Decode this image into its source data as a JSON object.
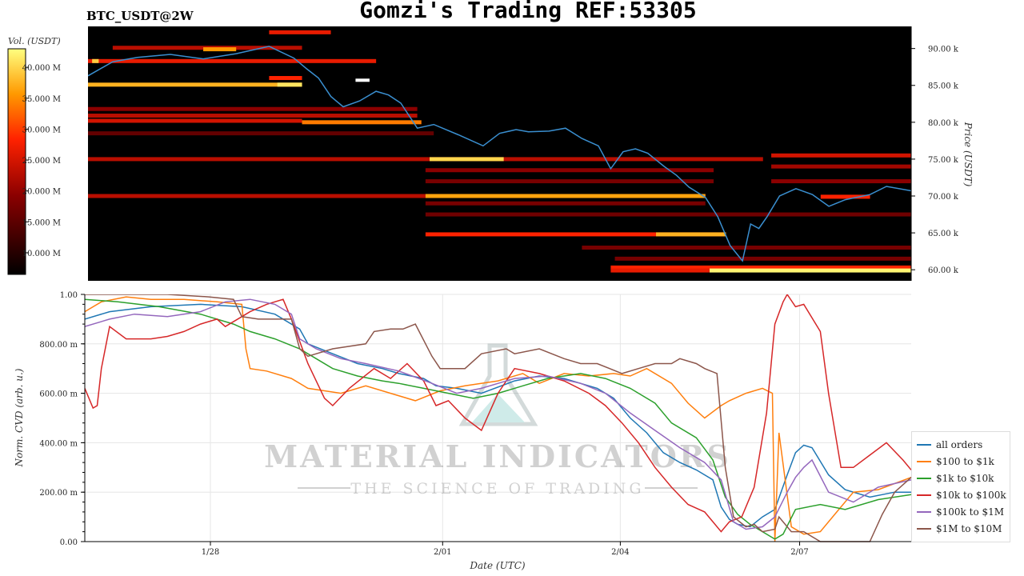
{
  "header": {
    "title": "Gomzi's Trading REF:53305",
    "pair": "BTC_USDT@2W"
  },
  "watermark": {
    "brand": "MATERIAL INDICATORS",
    "tagline": "THE SCIENCE OF TRADING"
  },
  "colorbar": {
    "label": "Vol. (USDT)",
    "ticks": [
      "40.000 M",
      "35.000 M",
      "30.000 M",
      "25.000 M",
      "20.000 M",
      "15.000 M",
      "10.000 M"
    ],
    "tick_values": [
      40,
      35,
      30,
      25,
      20,
      15,
      10
    ],
    "range": [
      6.5,
      43
    ]
  },
  "chart_data": [
    {
      "type": "heatmap",
      "title": "",
      "xlabel": "",
      "ylabel": "Price (USDT)",
      "ylim": [
        58500,
        93000
      ],
      "y_ticks": [
        {
          "value": 90000,
          "label": "90.00 k"
        },
        {
          "value": 85000,
          "label": "85.00 k"
        },
        {
          "value": 80000,
          "label": "80.00 k"
        },
        {
          "value": 75000,
          "label": "75.00 k"
        },
        {
          "value": 70000,
          "label": "70.00 k"
        },
        {
          "value": 65000,
          "label": "65.00 k"
        },
        {
          "value": 60000,
          "label": "60.00 k"
        }
      ],
      "price_line_color": "#3a8fd0",
      "price_series": {
        "x": [
          0,
          3,
          6,
          10,
          14,
          18,
          22,
          25,
          26.5,
          28,
          29.5,
          31,
          33,
          35,
          36.5,
          38,
          40,
          42,
          45,
          48,
          50,
          52,
          53.5,
          56,
          58,
          60,
          62,
          63.5,
          65,
          66.5,
          68,
          70,
          71.5,
          73,
          75,
          76.5,
          78,
          79.5,
          80.5,
          81.5,
          82.5,
          84,
          86,
          88,
          90,
          92,
          95,
          97,
          100
        ],
        "y": [
          86300,
          88200,
          88800,
          89200,
          88600,
          89300,
          90300,
          88700,
          87300,
          86000,
          83500,
          82100,
          82900,
          84200,
          83700,
          82600,
          79200,
          79700,
          78300,
          76800,
          78500,
          79000,
          78700,
          78800,
          79200,
          77800,
          76800,
          73700,
          76000,
          76400,
          75800,
          74000,
          72800,
          71200,
          69800,
          67200,
          63300,
          61200,
          66200,
          65600,
          67200,
          70000,
          71000,
          70200,
          68600,
          69500,
          70200,
          71300,
          70700
        ]
      },
      "price_levels": [
        {
          "price": 85100,
          "intensity": 0.85,
          "from": 0,
          "to": 26
        },
        {
          "price": 85100,
          "intensity": 0.95,
          "from": 23,
          "to": 26
        },
        {
          "price": 88300,
          "intensity": 0.55,
          "from": 0,
          "to": 35
        },
        {
          "price": 88300,
          "intensity": 0.9,
          "from": 0.5,
          "to": 1.3
        },
        {
          "price": 90100,
          "intensity": 0.45,
          "from": 3,
          "to": 26
        },
        {
          "price": 89900,
          "intensity": 0.8,
          "from": 14,
          "to": 18
        },
        {
          "price": 92200,
          "intensity": 0.55,
          "from": 22,
          "to": 29.5
        },
        {
          "price": 86000,
          "intensity": 0.6,
          "from": 22,
          "to": 26
        },
        {
          "price": 81800,
          "intensity": 0.35,
          "from": 0,
          "to": 40
        },
        {
          "price": 80900,
          "intensity": 0.45,
          "from": 0,
          "to": 40
        },
        {
          "price": 80200,
          "intensity": 0.5,
          "from": 0,
          "to": 26
        },
        {
          "price": 80000,
          "intensity": 0.75,
          "from": 26,
          "to": 40.5
        },
        {
          "price": 78500,
          "intensity": 0.25,
          "from": 0,
          "to": 42
        },
        {
          "price": 75000,
          "intensity": 0.45,
          "from": 0,
          "to": 82
        },
        {
          "price": 75000,
          "intensity": 0.92,
          "from": 41.5,
          "to": 50.5
        },
        {
          "price": 73500,
          "intensity": 0.35,
          "from": 41,
          "to": 76
        },
        {
          "price": 72000,
          "intensity": 0.3,
          "from": 41,
          "to": 76
        },
        {
          "price": 70000,
          "intensity": 0.45,
          "from": 0,
          "to": 75
        },
        {
          "price": 70000,
          "intensity": 0.82,
          "from": 41,
          "to": 75
        },
        {
          "price": 69000,
          "intensity": 0.3,
          "from": 41,
          "to": 75
        },
        {
          "price": 67500,
          "intensity": 0.28,
          "from": 41,
          "to": 100
        },
        {
          "price": 64800,
          "intensity": 0.6,
          "from": 41,
          "to": 77.5
        },
        {
          "price": 64800,
          "intensity": 0.85,
          "from": 69,
          "to": 77.5
        },
        {
          "price": 63000,
          "intensity": 0.3,
          "from": 60,
          "to": 100
        },
        {
          "price": 61500,
          "intensity": 0.3,
          "from": 64,
          "to": 100
        },
        {
          "price": 60300,
          "intensity": 0.6,
          "from": 63.5,
          "to": 100
        },
        {
          "price": 59900,
          "intensity": 0.98,
          "from": 75.5,
          "to": 100
        },
        {
          "price": 59900,
          "intensity": 0.55,
          "from": 63.5,
          "to": 75.5
        },
        {
          "price": 75500,
          "intensity": 0.5,
          "from": 83,
          "to": 100
        },
        {
          "price": 74000,
          "intensity": 0.4,
          "from": 83,
          "to": 100
        },
        {
          "price": 72000,
          "intensity": 0.35,
          "from": 83,
          "to": 100
        },
        {
          "price": 69900,
          "intensity": 0.6,
          "from": 89,
          "to": 95
        }
      ],
      "isolated_marks": [
        {
          "price": 85700,
          "from": 32.5,
          "to": 34.2
        }
      ]
    },
    {
      "type": "line",
      "title": "",
      "xlabel": "Date (UTC)",
      "ylabel": "Norm. CVD (arb. u.)",
      "ylim": [
        0,
        1
      ],
      "y_ticks": [
        {
          "value": 1.0,
          "label": "1.00"
        },
        {
          "value": 0.8,
          "label": "800.00 m"
        },
        {
          "value": 0.6,
          "label": "600.00 m"
        },
        {
          "value": 0.4,
          "label": "400.00 m"
        },
        {
          "value": 0.2,
          "label": "200.00 m"
        },
        {
          "value": 0.0,
          "label": "0.00"
        }
      ],
      "x_ticks": [
        {
          "value": 15.2,
          "label": "1/28"
        },
        {
          "value": 43.3,
          "label": "2/01"
        },
        {
          "value": 64.8,
          "label": "2/04"
        },
        {
          "value": 86.5,
          "label": "2/07"
        }
      ],
      "grid": true,
      "legend_position": "right",
      "series": [
        {
          "name": "all orders",
          "color": "#1f77b4",
          "x": [
            0,
            3,
            8,
            14,
            19,
            23,
            26,
            27,
            30,
            33,
            36,
            38,
            41,
            42.5,
            45,
            48,
            52,
            55,
            58,
            62,
            64,
            66,
            68,
            70,
            72,
            74,
            76,
            77,
            78,
            79,
            80.5,
            82,
            83.5,
            85,
            86,
            87,
            88,
            90,
            92,
            95,
            98,
            100
          ],
          "y": [
            0.9,
            0.93,
            0.95,
            0.96,
            0.95,
            0.92,
            0.86,
            0.8,
            0.76,
            0.72,
            0.7,
            0.68,
            0.66,
            0.63,
            0.62,
            0.6,
            0.65,
            0.67,
            0.66,
            0.62,
            0.58,
            0.5,
            0.44,
            0.36,
            0.32,
            0.29,
            0.25,
            0.14,
            0.09,
            0.07,
            0.06,
            0.1,
            0.13,
            0.27,
            0.36,
            0.39,
            0.38,
            0.27,
            0.21,
            0.18,
            0.2,
            0.2
          ]
        },
        {
          "name": "$100 to $1k",
          "color": "#ff7f0e",
          "x": [
            0,
            2,
            5,
            8,
            12,
            16,
            19,
            19.5,
            20,
            22,
            25,
            27,
            29,
            31,
            34,
            37,
            40,
            43,
            46,
            50,
            53,
            55,
            58,
            61,
            64,
            66,
            68,
            71,
            73,
            75,
            77,
            78,
            80,
            82,
            83.2,
            83.5,
            84,
            85.5,
            87,
            89,
            91,
            93,
            96,
            100
          ],
          "y": [
            0.93,
            0.97,
            0.99,
            0.98,
            0.98,
            0.97,
            0.96,
            0.78,
            0.7,
            0.69,
            0.66,
            0.62,
            0.61,
            0.6,
            0.63,
            0.6,
            0.57,
            0.61,
            0.63,
            0.65,
            0.68,
            0.64,
            0.68,
            0.67,
            0.68,
            0.67,
            0.7,
            0.64,
            0.56,
            0.5,
            0.55,
            0.57,
            0.6,
            0.62,
            0.6,
            0.0,
            0.44,
            0.06,
            0.03,
            0.04,
            0.12,
            0.2,
            0.21,
            0.26
          ]
        },
        {
          "name": "$1k to $10k",
          "color": "#2ca02c",
          "x": [
            0,
            4,
            9,
            14,
            18,
            20,
            23,
            26,
            28,
            30,
            33,
            36,
            38,
            41,
            44,
            47,
            50,
            53,
            56,
            60,
            63,
            66,
            69,
            71,
            74,
            76,
            77.5,
            79,
            80.5,
            82,
            83.5,
            84.5,
            86,
            89,
            92,
            96,
            100
          ],
          "y": [
            0.98,
            0.97,
            0.95,
            0.92,
            0.88,
            0.85,
            0.82,
            0.78,
            0.74,
            0.7,
            0.67,
            0.65,
            0.64,
            0.62,
            0.6,
            0.58,
            0.6,
            0.63,
            0.66,
            0.68,
            0.66,
            0.62,
            0.56,
            0.48,
            0.42,
            0.33,
            0.18,
            0.11,
            0.07,
            0.04,
            0.01,
            0.03,
            0.13,
            0.15,
            0.13,
            0.17,
            0.19
          ]
        },
        {
          "name": "$10k to $100k",
          "color": "#d62728",
          "x": [
            0,
            1,
            1.5,
            2,
            3,
            5,
            8,
            10,
            12,
            14,
            16,
            17,
            19,
            20,
            22,
            24,
            25,
            27,
            29,
            30,
            32,
            35,
            37,
            39,
            41,
            42.5,
            44,
            46,
            48,
            50,
            52,
            55,
            58,
            61,
            63,
            65,
            67,
            69,
            71,
            73,
            75,
            77,
            78,
            79.5,
            81,
            82.5,
            83.5,
            84.5,
            85,
            86,
            87,
            89,
            90,
            91.5,
            93,
            95,
            97,
            99,
            100
          ],
          "y": [
            0.62,
            0.54,
            0.55,
            0.7,
            0.87,
            0.82,
            0.82,
            0.83,
            0.85,
            0.88,
            0.9,
            0.87,
            0.91,
            0.93,
            0.96,
            0.98,
            0.9,
            0.72,
            0.58,
            0.55,
            0.62,
            0.7,
            0.66,
            0.72,
            0.65,
            0.55,
            0.57,
            0.5,
            0.45,
            0.6,
            0.7,
            0.68,
            0.65,
            0.6,
            0.55,
            0.48,
            0.4,
            0.3,
            0.22,
            0.15,
            0.12,
            0.04,
            0.08,
            0.1,
            0.22,
            0.52,
            0.88,
            0.97,
            1.0,
            0.95,
            0.96,
            0.85,
            0.6,
            0.3,
            0.3,
            0.35,
            0.4,
            0.33,
            0.29
          ]
        },
        {
          "name": "$100k to $1M",
          "color": "#9467bd",
          "x": [
            0,
            3,
            6,
            10,
            14,
            17,
            20,
            23,
            25,
            26,
            28,
            31,
            34,
            38,
            42,
            45,
            48,
            52,
            56,
            60,
            63,
            66,
            69,
            72,
            75,
            77,
            78.5,
            80,
            82,
            83.5,
            85,
            86,
            87,
            88,
            90,
            93,
            96,
            100
          ],
          "y": [
            0.87,
            0.9,
            0.92,
            0.91,
            0.93,
            0.97,
            0.98,
            0.96,
            0.92,
            0.82,
            0.78,
            0.74,
            0.72,
            0.69,
            0.64,
            0.6,
            0.62,
            0.66,
            0.67,
            0.64,
            0.6,
            0.52,
            0.45,
            0.38,
            0.32,
            0.25,
            0.08,
            0.05,
            0.06,
            0.1,
            0.2,
            0.26,
            0.3,
            0.33,
            0.2,
            0.16,
            0.22,
            0.25
          ]
        },
        {
          "name": "$1M to $10M",
          "color": "#8c564b",
          "x": [
            0,
            5,
            10,
            15,
            18,
            19,
            21,
            25,
            26,
            27,
            30,
            34,
            35,
            37,
            38.5,
            40,
            42,
            43,
            46,
            48,
            51,
            52,
            55,
            58,
            60,
            62,
            65,
            67,
            69,
            71,
            72,
            74,
            75,
            76.5,
            77.5,
            78.5,
            80,
            81,
            82,
            83.5,
            84,
            85.5,
            87,
            89,
            90,
            91,
            92,
            93,
            95,
            96.5,
            98,
            100
          ],
          "y": [
            1.0,
            1.0,
            1.0,
            0.99,
            0.98,
            0.91,
            0.9,
            0.9,
            0.78,
            0.75,
            0.78,
            0.8,
            0.85,
            0.86,
            0.86,
            0.88,
            0.75,
            0.7,
            0.7,
            0.76,
            0.78,
            0.76,
            0.78,
            0.74,
            0.72,
            0.72,
            0.68,
            0.7,
            0.72,
            0.72,
            0.74,
            0.72,
            0.7,
            0.68,
            0.3,
            0.1,
            0.06,
            0.07,
            0.04,
            0.05,
            0.1,
            0.04,
            0.04,
            0.0,
            0.0,
            0.0,
            0.0,
            0.0,
            0.0,
            0.11,
            0.2,
            0.26
          ]
        }
      ]
    }
  ]
}
